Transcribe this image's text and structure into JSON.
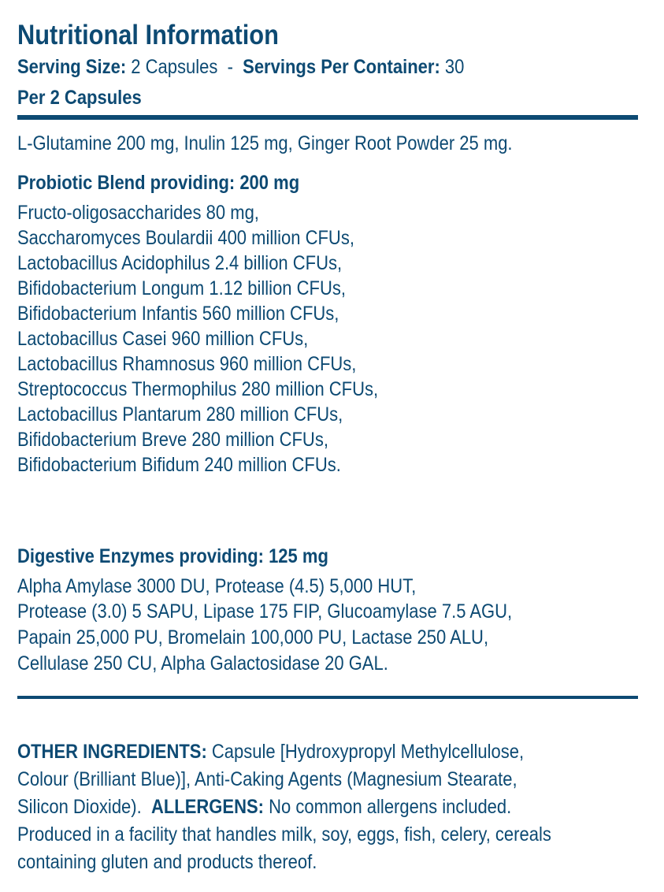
{
  "title": "Nutritional Information",
  "serving": {
    "size_label": "Serving Size:",
    "size_value": "2 Capsules",
    "separator": "-",
    "per_container_label": "Servings Per Container:",
    "per_container_value": "30"
  },
  "per_label": "Per 2 Capsules",
  "base_ingredients": "L-Glutamine 200 mg, Inulin 125 mg, Ginger Root Powder 25 mg.",
  "probiotic": {
    "heading": "Probiotic Blend providing: 200 mg",
    "items": [
      "Fructo-oligosaccharides 80 mg,",
      "Saccharomyces Boulardii 400 million CFUs,",
      "Lactobacillus Acidophilus 2.4 billion CFUs,",
      "Bifidobacterium Longum 1.12 billion CFUs,",
      "Bifidobacterium Infantis 560 million CFUs,",
      "Lactobacillus Casei 960 million CFUs,",
      "Lactobacillus Rhamnosus 960 million CFUs,",
      "Streptococcus Thermophilus 280 million CFUs,",
      "Lactobacillus Plantarum 280 million CFUs,",
      "Bifidobacterium Breve 280 million CFUs,",
      "Bifidobacterium Bifidum 240 million CFUs."
    ]
  },
  "enzymes": {
    "heading": "Digestive Enzymes providing: 125 mg",
    "lines": [
      "Alpha Amylase 3000 DU, Protease (4.5) 5,000 HUT,",
      "Protease (3.0) 5 SAPU, Lipase 175 FIP, Glucoamylase 7.5 AGU,",
      "Papain 25,000 PU, Bromelain 100,000 PU, Lactase 250 ALU,",
      "Cellulase 250 CU, Alpha Galactosidase 20 GAL."
    ]
  },
  "other": {
    "label": "OTHER INGREDIENTS:",
    "line1": "Capsule [Hydroxypropyl Methylcellulose,",
    "line2": "Colour (Brilliant Blue)], Anti-Caking Agents (Magnesium Stearate,",
    "line3": "Silicon Dioxide).",
    "allergens_label": "ALLERGENS:",
    "allergens_text": "No common allergens included.",
    "line4": "Produced in a facility that handles milk, soy, eggs, fish, celery, cereals",
    "line5": "containing gluten and products thereof."
  },
  "colors": {
    "text": "#0d4a73",
    "rule": "#0d4a73"
  }
}
